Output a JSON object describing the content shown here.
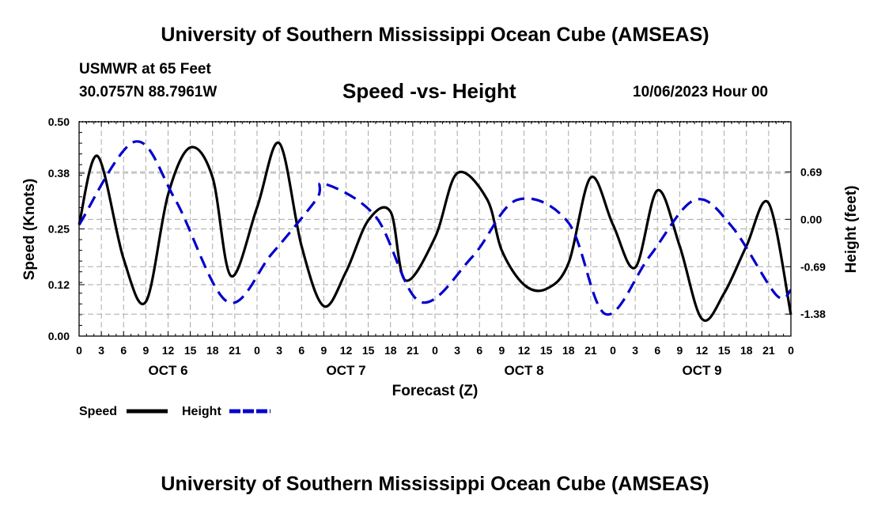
{
  "header": {
    "title_top": "University of Southern Mississippi Ocean Cube (AMSEAS)",
    "station": "USMWR at 65 Feet",
    "coords": "30.0757N  88.7961W",
    "subtitle": "Speed -vs- Height",
    "datestamp": "10/06/2023 Hour 00",
    "title_bottom": "University of Southern Mississippi Ocean Cube (AMSEAS)"
  },
  "colors": {
    "speed": "#000000",
    "height": "#0000cc",
    "grid": "#aaaaaa"
  },
  "chart_data": {
    "type": "line",
    "xlabel": "Forecast (Z)",
    "ylabel_left": "Speed (Knots)",
    "ylabel_right": "Height (feet)",
    "xlim": [
      0,
      96
    ],
    "ylim_left": [
      0,
      0.5
    ],
    "ylim_right": [
      -1.7,
      1.42
    ],
    "left_ticks": [
      "0.00",
      "0.12",
      "0.25",
      "0.38",
      "0.50"
    ],
    "right_ticks": [
      "-1.38",
      "-0.69",
      "0.00",
      "0.69"
    ],
    "x_ticks": [
      "0",
      "3",
      "6",
      "9",
      "12",
      "15",
      "18",
      "21",
      "0",
      "3",
      "6",
      "9",
      "12",
      "15",
      "18",
      "21",
      "0",
      "3",
      "6",
      "9",
      "12",
      "15",
      "18",
      "21",
      "0",
      "3",
      "6",
      "9",
      "12",
      "15",
      "18",
      "21",
      "0"
    ],
    "day_labels": [
      "OCT 6",
      "OCT 7",
      "OCT 8",
      "OCT 9"
    ],
    "grid": true,
    "legend_position": "bottom-left",
    "series": [
      {
        "name": "Speed",
        "y_axis": "left",
        "style": "solid",
        "x": [
          0,
          2.5,
          6,
          9,
          12,
          15,
          18,
          20.5,
          24,
          27,
          30,
          33,
          36,
          39,
          42,
          44,
          48,
          51,
          55,
          57,
          60,
          63,
          66,
          69,
          72,
          75,
          78,
          81,
          84,
          87,
          90,
          93,
          96
        ],
        "y": [
          0.26,
          0.42,
          0.18,
          0.08,
          0.33,
          0.44,
          0.37,
          0.14,
          0.3,
          0.45,
          0.21,
          0.07,
          0.15,
          0.27,
          0.29,
          0.13,
          0.23,
          0.38,
          0.32,
          0.2,
          0.12,
          0.11,
          0.17,
          0.37,
          0.26,
          0.16,
          0.34,
          0.21,
          0.04,
          0.1,
          0.21,
          0.31,
          0.05
        ]
      },
      {
        "name": "Height",
        "y_axis": "right",
        "style": "dashed",
        "x": [
          0,
          7.5,
          13,
          20,
          26,
          32,
          33,
          40,
          46,
          53,
          59,
          66,
          71,
          77,
          83,
          88,
          94,
          96
        ],
        "y": [
          -0.08,
          1.13,
          0.28,
          -1.2,
          -0.5,
          0.29,
          0.52,
          0.04,
          -1.2,
          -0.55,
          0.28,
          -0.05,
          -1.38,
          -0.53,
          0.28,
          -0.1,
          -1.1,
          -1.03
        ]
      }
    ]
  }
}
